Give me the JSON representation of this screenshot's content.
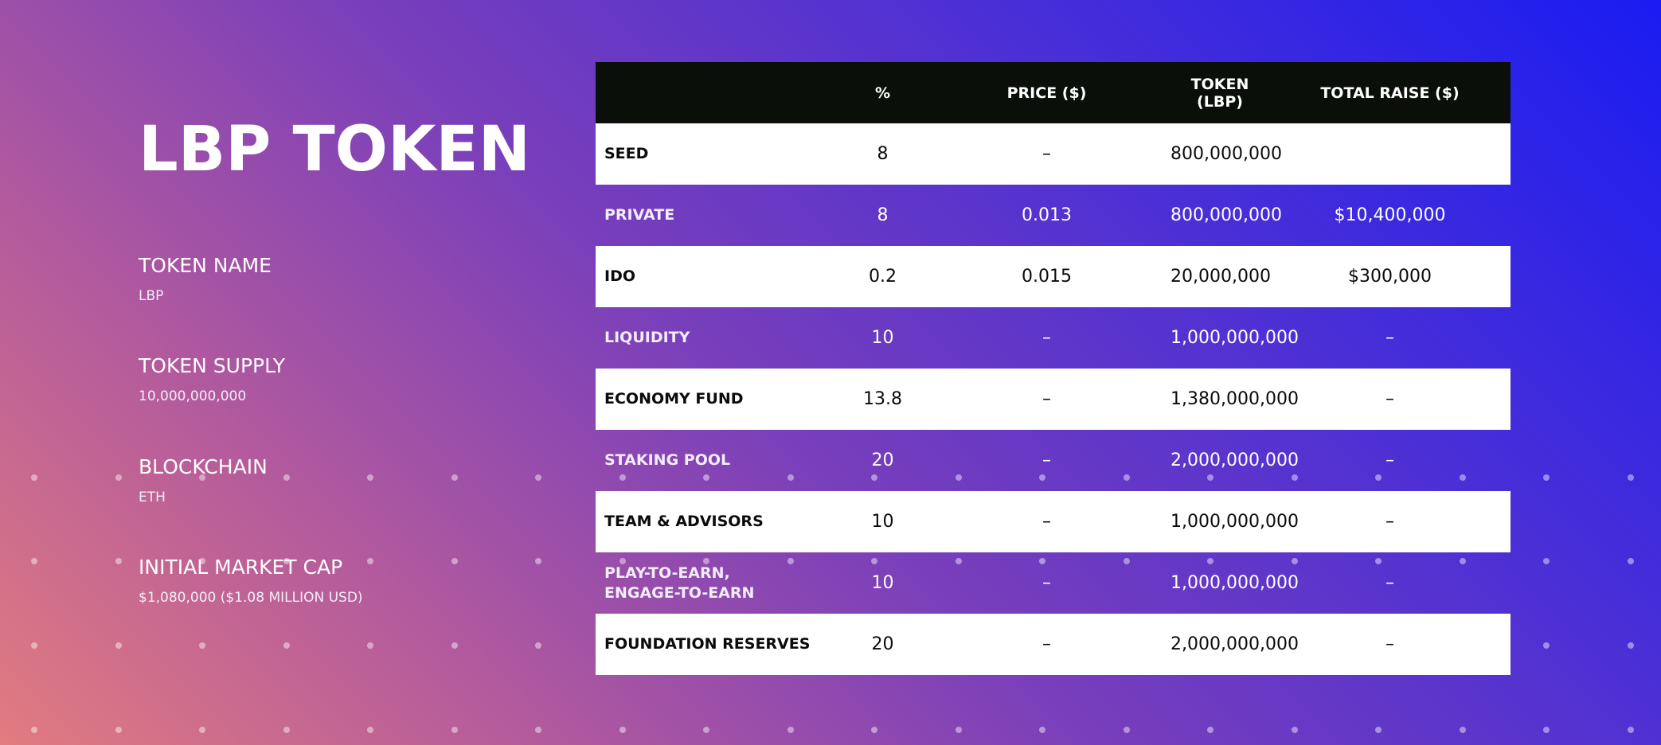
{
  "title": "LBP TOKEN",
  "info": [
    {
      "label": "TOKEN NAME",
      "value": "LBP"
    },
    {
      "label": "TOKEN SUPPLY",
      "value": "10,000,000,000"
    },
    {
      "label": "BLOCKCHAIN",
      "value": "ETH"
    },
    {
      "label": "INITIAL MARKET CAP",
      "value": "$1,080,000 ($1.08 MILLION USD)"
    }
  ],
  "table": {
    "headers": [
      "",
      "%",
      "PRICE ($)",
      "TOKEN (LBP)",
      "TOTAL RAISE ($)"
    ],
    "rows": [
      {
        "name": "SEED",
        "pct": "8",
        "price": "–",
        "tokens": "800,000,000",
        "raise": ""
      },
      {
        "name": "PRIVATE",
        "pct": "8",
        "price": "0.013",
        "tokens": "800,000,000",
        "raise": "$10,400,000"
      },
      {
        "name": "IDO",
        "pct": "0.2",
        "price": "0.015",
        "tokens": "20,000,000",
        "raise": "$300,000"
      },
      {
        "name": "LIQUIDITY",
        "pct": "10",
        "price": "–",
        "tokens": "1,000,000,000",
        "raise": "–"
      },
      {
        "name": "ECONOMY FUND",
        "pct": "13.8",
        "price": "–",
        "tokens": "1,380,000,000",
        "raise": "–"
      },
      {
        "name": "STAKING POOL",
        "pct": "20",
        "price": "–",
        "tokens": "2,000,000,000",
        "raise": "–"
      },
      {
        "name": "TEAM & ADVISORS",
        "pct": "10",
        "price": "–",
        "tokens": "1,000,000,000",
        "raise": "–"
      },
      {
        "name": "PLAY-TO-EARN,\nENGAGE-TO-EARN",
        "pct": "10",
        "price": "–",
        "tokens": "1,000,000,000",
        "raise": "–"
      },
      {
        "name": "FOUNDATION RESERVES",
        "pct": "20",
        "price": "–",
        "tokens": "2,000,000,000",
        "raise": "–"
      }
    ]
  },
  "colors": {
    "gradient_top_right": "#1a1cf2",
    "gradient_bottom_left": "#e27c7f",
    "header_bg": "#0a0f0a",
    "white_row_bg": "#ffffff"
  }
}
